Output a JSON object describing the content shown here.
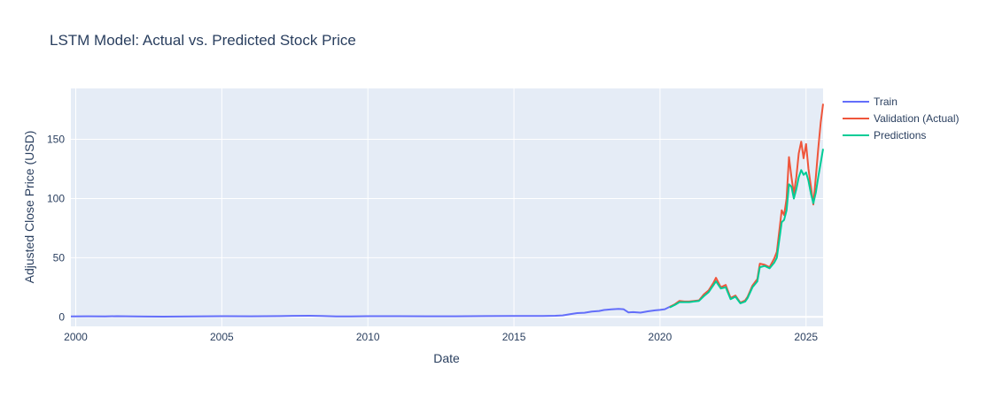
{
  "chart_data": {
    "type": "line",
    "title": "LSTM Model: Actual vs. Predicted Stock Price",
    "xlabel": "Date",
    "ylabel": "Adjusted Close Price (USD)",
    "xlim": [
      "1999-11",
      "2025-08"
    ],
    "ylim": [
      -8,
      193
    ],
    "x_ticks": [
      {
        "label": "2000",
        "date": "2000-01"
      },
      {
        "label": "2005",
        "date": "2005-01"
      },
      {
        "label": "2010",
        "date": "2010-01"
      },
      {
        "label": "2015",
        "date": "2015-01"
      },
      {
        "label": "2020",
        "date": "2020-01"
      },
      {
        "label": "2025",
        "date": "2025-01"
      }
    ],
    "y_ticks": [
      0,
      50,
      100,
      150
    ],
    "grid": true,
    "legend_position": "top-right outside",
    "series": [
      {
        "name": "Train",
        "color": "#636efa",
        "x": [
          "1999-11",
          "2000-06",
          "2001-01",
          "2001-06",
          "2002-01",
          "2002-06",
          "2003-01",
          "2004-01",
          "2005-01",
          "2006-01",
          "2007-01",
          "2007-06",
          "2008-01",
          "2008-06",
          "2008-12",
          "2009-06",
          "2010-01",
          "2011-01",
          "2012-01",
          "2013-01",
          "2014-01",
          "2015-01",
          "2016-01",
          "2016-06",
          "2016-09",
          "2016-12",
          "2017-03",
          "2017-06",
          "2017-09",
          "2017-12",
          "2018-02",
          "2018-05",
          "2018-08",
          "2018-10",
          "2018-12",
          "2019-02",
          "2019-05",
          "2019-08",
          "2019-11",
          "2020-01",
          "2020-03",
          "2020-05"
        ],
        "y": [
          0.35,
          0.5,
          0.45,
          0.6,
          0.4,
          0.3,
          0.25,
          0.4,
          0.6,
          0.55,
          0.7,
          0.9,
          1.0,
          0.8,
          0.35,
          0.4,
          0.6,
          0.6,
          0.55,
          0.55,
          0.65,
          0.75,
          0.8,
          1.0,
          1.3,
          2.2,
          3.2,
          3.5,
          4.5,
          5.0,
          5.8,
          6.4,
          6.8,
          6.5,
          3.8,
          4.0,
          3.6,
          4.7,
          5.5,
          5.9,
          6.5,
          8.5
        ]
      },
      {
        "name": "Validation (Actual)",
        "color": "#ef553b",
        "x": [
          "2020-05",
          "2020-07",
          "2020-09",
          "2020-11",
          "2021-01",
          "2021-03",
          "2021-05",
          "2021-07",
          "2021-09",
          "2021-11",
          "2021-12",
          "2022-02",
          "2022-04",
          "2022-06",
          "2022-08",
          "2022-10",
          "2022-12",
          "2023-01",
          "2023-03",
          "2023-05",
          "2023-06",
          "2023-08",
          "2023-10",
          "2023-12",
          "2024-01",
          "2024-03",
          "2024-04",
          "2024-05",
          "2024-06",
          "2024-07",
          "2024-08",
          "2024-09",
          "2024-10",
          "2024-11",
          "2024-12",
          "2025-01",
          "2025-02",
          "2025-03",
          "2025-04",
          "2025-05",
          "2025-06",
          "2025-07",
          "2025-08"
        ],
        "y": [
          8.5,
          10.5,
          13.5,
          13.0,
          13.0,
          13.5,
          14.0,
          19.0,
          22.5,
          29.0,
          33.0,
          25.0,
          27.0,
          16.0,
          18.0,
          12.0,
          14.0,
          17.0,
          26.5,
          32.0,
          45.0,
          44.0,
          42.0,
          49.5,
          55.0,
          90.0,
          86.0,
          100.0,
          135.0,
          118.0,
          104.0,
          118.0,
          138.0,
          148.0,
          134.0,
          146.0,
          125.0,
          110.0,
          95.0,
          118.0,
          142.0,
          164.0,
          180.0
        ]
      },
      {
        "name": "Predictions",
        "color": "#00cc96",
        "x": [
          "2020-05",
          "2020-07",
          "2020-09",
          "2020-11",
          "2021-01",
          "2021-03",
          "2021-05",
          "2021-07",
          "2021-09",
          "2021-11",
          "2021-12",
          "2022-02",
          "2022-04",
          "2022-06",
          "2022-08",
          "2022-10",
          "2022-12",
          "2023-01",
          "2023-03",
          "2023-05",
          "2023-06",
          "2023-08",
          "2023-10",
          "2023-12",
          "2024-01",
          "2024-03",
          "2024-04",
          "2024-05",
          "2024-06",
          "2024-07",
          "2024-08",
          "2024-09",
          "2024-10",
          "2024-11",
          "2024-12",
          "2025-01",
          "2025-02",
          "2025-03",
          "2025-04",
          "2025-05",
          "2025-06",
          "2025-07",
          "2025-08"
        ],
        "y": [
          8.0,
          10.0,
          12.5,
          12.5,
          12.5,
          13.0,
          13.5,
          17.5,
          21.0,
          27.0,
          30.0,
          24.0,
          25.0,
          15.0,
          17.0,
          11.5,
          13.0,
          16.0,
          25.0,
          30.0,
          42.0,
          43.0,
          41.0,
          46.0,
          50.0,
          80.0,
          82.0,
          90.0,
          112.0,
          110.0,
          100.0,
          108.0,
          118.0,
          124.0,
          120.0,
          122.0,
          115.0,
          104.0,
          96.0,
          105.0,
          118.0,
          130.0,
          142.0
        ]
      }
    ]
  }
}
